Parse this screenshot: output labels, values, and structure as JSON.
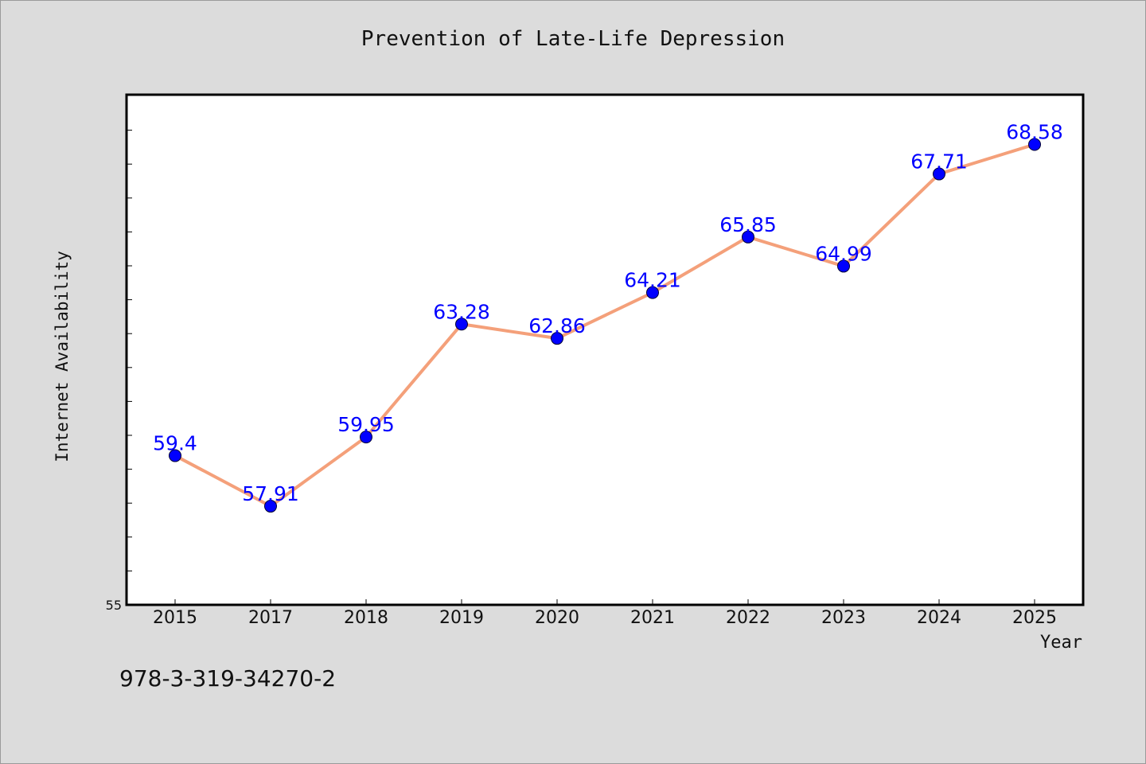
{
  "chart_data": {
    "type": "line",
    "title": "Prevention of Late-Life Depression",
    "xlabel": "Year",
    "ylabel": "Internet Availability",
    "categories": [
      "2015",
      "2017",
      "2018",
      "2019",
      "2020",
      "2021",
      "2022",
      "2023",
      "2024",
      "2025"
    ],
    "series": [
      {
        "values": [
          59.4,
          57.91,
          59.95,
          63.28,
          62.86,
          64.21,
          65.85,
          64.99,
          67.71,
          68.58
        ],
        "data_labels": [
          "59.4",
          "57.91",
          "59.95",
          "63.28",
          "62.86",
          "64.21",
          "65.85",
          "64.99",
          "67.71",
          "68.58"
        ],
        "line_color": "#f4a07a",
        "marker_color": "#0000ff"
      }
    ],
    "ylim": [
      55,
      70
    ],
    "ytick_min_label": "55",
    "grid": false,
    "legend": "none"
  },
  "footer": {
    "isbn": "978-3-319-34270-2"
  },
  "colors": {
    "background": "#dcdcdc",
    "plot_background": "#ffffff",
    "label_color": "#0000ff"
  }
}
